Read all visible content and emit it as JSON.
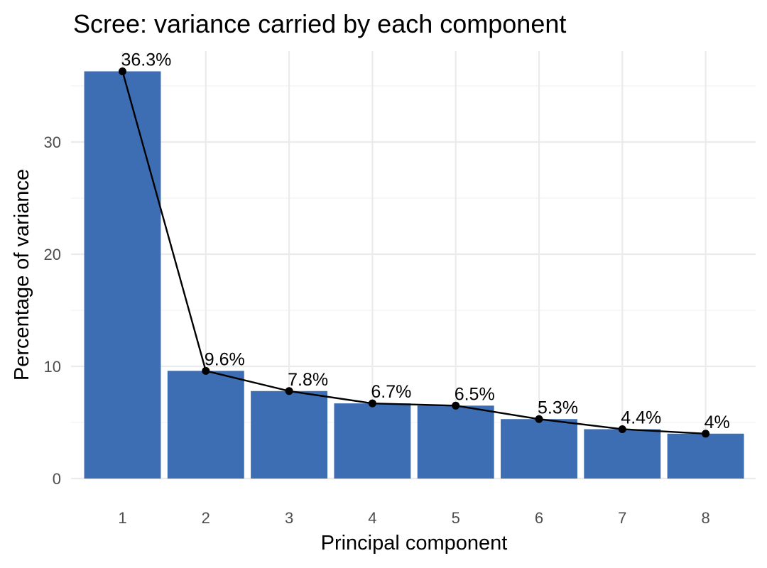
{
  "chart_data": {
    "type": "bar",
    "title": "Scree: variance carried by each component",
    "xlabel": "Principal component",
    "ylabel": "Percentage of variance",
    "categories": [
      "1",
      "2",
      "3",
      "4",
      "5",
      "6",
      "7",
      "8"
    ],
    "values": [
      36.3,
      9.6,
      7.8,
      6.7,
      6.5,
      5.3,
      4.4,
      4
    ],
    "data_labels": [
      "36.3%",
      "9.6%",
      "7.8%",
      "6.7%",
      "6.5%",
      "5.3%",
      "4.4%",
      "4%"
    ],
    "ylim": [
      0,
      38
    ],
    "yticks": [
      0,
      10,
      20,
      30
    ],
    "overlay_line": true,
    "grid": true,
    "legend": "none",
    "colors": {
      "bar": "#3d6db2",
      "line": "#000000",
      "point": "#000000"
    }
  }
}
